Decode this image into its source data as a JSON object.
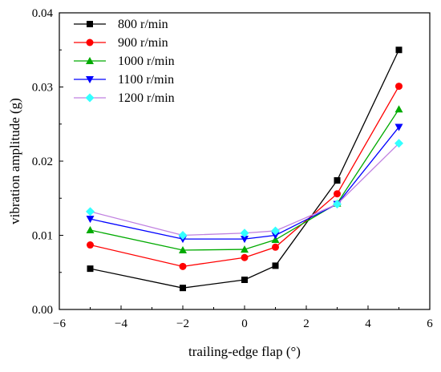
{
  "chart_data": {
    "type": "line",
    "xlabel": "trailing-edge flap (°)",
    "ylabel": "vibration amplitude (g)",
    "xlim": [
      -6,
      6
    ],
    "ylim": [
      0,
      0.04
    ],
    "xticks": [
      -6,
      -4,
      -2,
      0,
      2,
      4,
      6
    ],
    "xtick_labels": [
      "−6",
      "−4",
      "−2",
      "0",
      "2",
      "4",
      "6"
    ],
    "yticks": [
      0,
      0.01,
      0.02,
      0.03,
      0.04
    ],
    "ytick_labels": [
      "0.00",
      "0.01",
      "0.02",
      "0.03",
      "0.04"
    ],
    "grid": false,
    "legend_position": "top-left",
    "x": [
      -5,
      -2,
      0,
      1,
      3,
      5
    ],
    "series": [
      {
        "name": "800 r/min",
        "color": "#000000",
        "marker": "square",
        "values": [
          0.0055,
          0.0029,
          0.004,
          0.0059,
          0.0174,
          0.035
        ]
      },
      {
        "name": "900 r/min",
        "color": "#ff0000",
        "marker": "circle",
        "values": [
          0.0087,
          0.0058,
          0.007,
          0.0084,
          0.0156,
          0.0301
        ]
      },
      {
        "name": "1000 r/min",
        "color": "#00aa00",
        "marker": "triangle-up",
        "values": [
          0.0107,
          0.008,
          0.0081,
          0.0094,
          0.0143,
          0.027
        ]
      },
      {
        "name": "1100 r/min",
        "color": "#0000ff",
        "marker": "triangle-down",
        "values": [
          0.0122,
          0.0095,
          0.0095,
          0.01,
          0.0142,
          0.0246
        ]
      },
      {
        "name": "1200 r/min",
        "color": "#cc66ff",
        "line_color": "#c080e0",
        "marker_color": "#33ffff",
        "marker": "diamond",
        "values": [
          0.0132,
          0.01,
          0.0103,
          0.0106,
          0.0142,
          0.0224
        ]
      }
    ]
  }
}
